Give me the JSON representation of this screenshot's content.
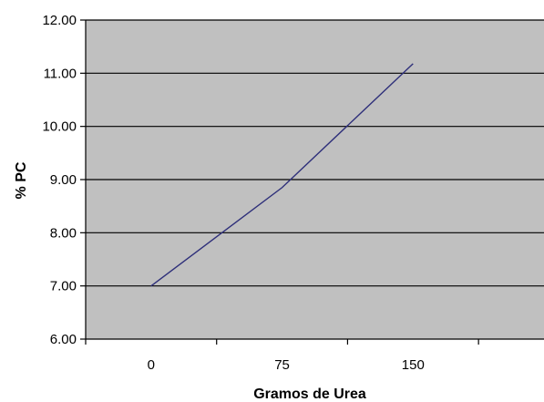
{
  "chart_data": {
    "type": "line",
    "title": "",
    "xlabel": "Gramos de Urea",
    "ylabel": "% PC",
    "categories": [
      "0",
      "75",
      "150"
    ],
    "series": [
      {
        "values": [
          7.0,
          8.85,
          11.18
        ],
        "color": "#2e2f7a"
      }
    ],
    "ylim": [
      6.0,
      12.0
    ],
    "y_ticks": [
      "6.00",
      "7.00",
      "8.00",
      "9.00",
      "10.00",
      "11.00",
      "12.00"
    ],
    "grid": true,
    "plot_background": "#c0c0c0",
    "gridline_color": "#000000",
    "legend": "none"
  }
}
